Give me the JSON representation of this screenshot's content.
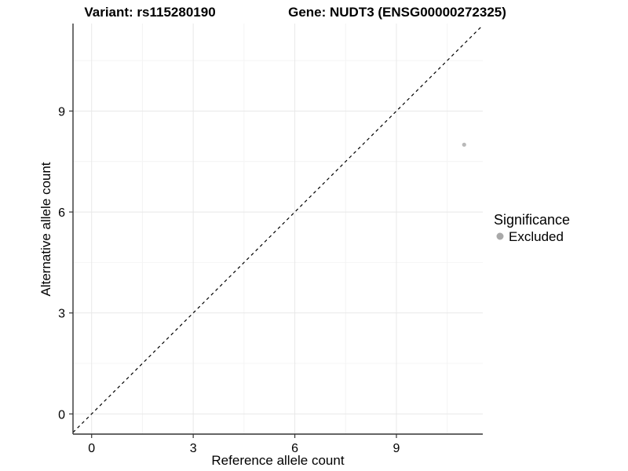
{
  "chart_data": {
    "type": "scatter",
    "title_left": "Variant: rs115280190",
    "title_right": "Gene: NUDT3 (ENSG00000272325)",
    "xlabel": "Reference allele count",
    "ylabel": "Alternative allele count",
    "xlim": [
      -0.55,
      11.55
    ],
    "ylim": [
      -0.6,
      11.6
    ],
    "x_ticks": [
      0,
      3,
      6,
      9
    ],
    "y_ticks": [
      0,
      3,
      6,
      9
    ],
    "x_minor_ticks": [
      1.5,
      4.5,
      7.5,
      10.5
    ],
    "y_minor_ticks": [
      1.5,
      4.5,
      7.5,
      10.5
    ],
    "grid": true,
    "points": [
      {
        "x": 11,
        "y": 8,
        "significance": "Excluded"
      }
    ],
    "identity_line": {
      "equation": "y = x",
      "style": "dashed",
      "color": "#000000"
    },
    "legend": {
      "title": "Significance",
      "position": "right",
      "items": [
        {
          "label": "Excluded",
          "color": "#b3b3b3"
        }
      ]
    }
  },
  "colors": {
    "background": "#ffffff",
    "grid_major": "#e8e8e8",
    "grid_minor": "#f4f4f4",
    "axis_line": "#333333",
    "tick": "#333333",
    "text": "#000000",
    "point": "#b9b9b9",
    "legend_dot": "#a9a9a9"
  }
}
